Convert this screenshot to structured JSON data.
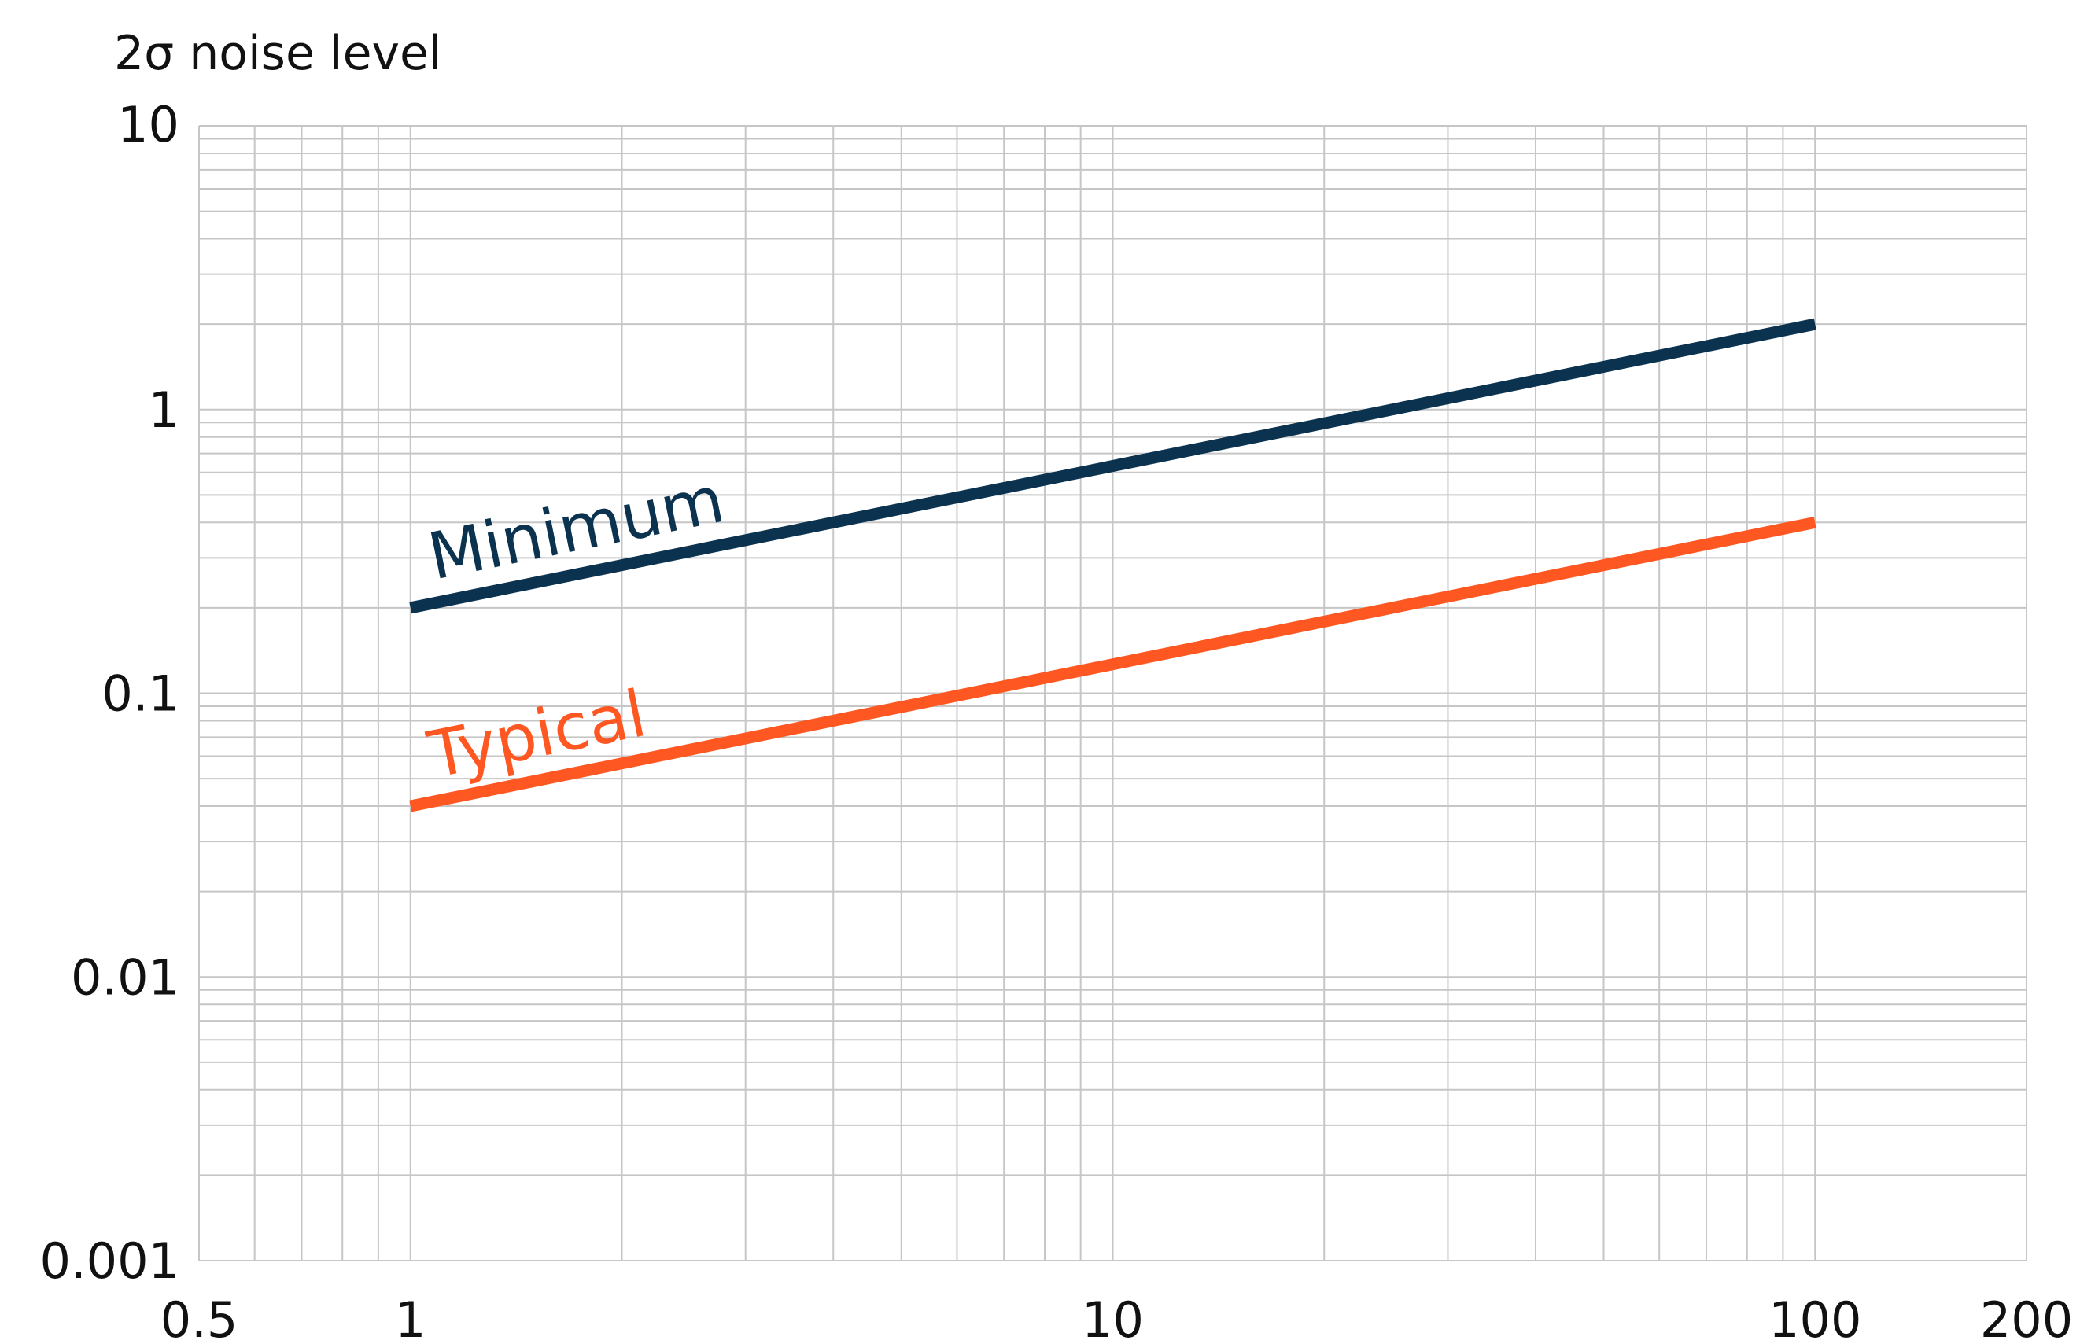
{
  "chart_data": {
    "type": "line",
    "ylabel": "2σ noise level",
    "xlabel": "",
    "x_scale": "log",
    "y_scale": "log",
    "xlim": [
      0.5,
      200
    ],
    "ylim": [
      0.001,
      10
    ],
    "x_ticks": [
      0.5,
      1,
      10,
      100,
      200
    ],
    "x_tick_labels": [
      "0.5",
      "1",
      "10",
      "100",
      "200"
    ],
    "y_ticks": [
      0.001,
      0.01,
      0.1,
      1,
      10
    ],
    "y_tick_labels": [
      "0.001",
      "0.01",
      "0.1",
      "1",
      "10"
    ],
    "grid": true,
    "series": [
      {
        "name": "Minimum",
        "x": [
          1,
          100
        ],
        "y": [
          0.2,
          2.0
        ],
        "color": "#0b3350"
      },
      {
        "name": "Typical",
        "x": [
          1,
          100
        ],
        "y": [
          0.04,
          0.4
        ],
        "color": "#ff5722"
      }
    ]
  }
}
